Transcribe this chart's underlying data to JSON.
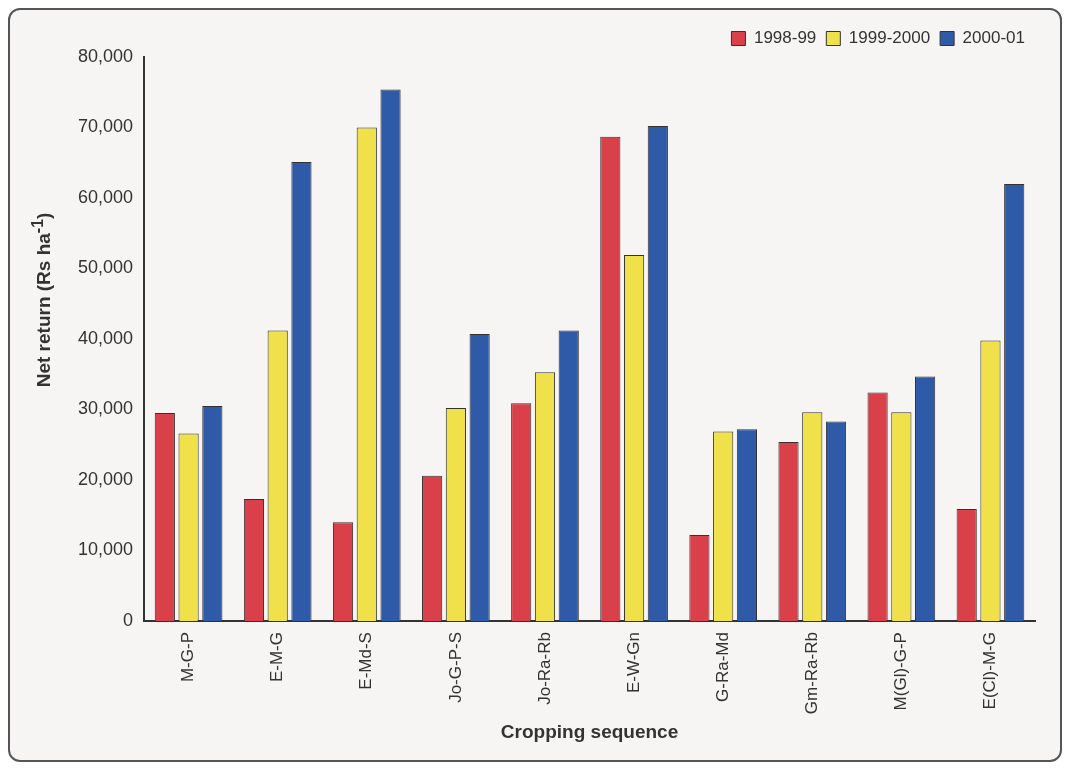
{
  "chart_data": {
    "type": "bar",
    "xlabel": "Cropping sequence",
    "ylabel": "Net return (Rs ha$^{-1}$)",
    "categories": [
      "M-G-P",
      "E-M-G",
      "E-Md-S",
      "Jo-G-P-S",
      "Jo-Ra-Rb",
      "E-W-Gn",
      "G-Ra-Md",
      "Gm-Ra-Rb",
      "M(Gl)-G-P",
      "E(Cl)-M-G"
    ],
    "series": [
      {
        "name": "1998-99",
        "color": "#d9404a",
        "values": [
          29500,
          17300,
          14000,
          20600,
          30900,
          68700,
          12200,
          25400,
          32400,
          15900
        ]
      },
      {
        "name": "1999-2000",
        "color": "#f0e04a",
        "values": [
          26600,
          41200,
          70000,
          30200,
          35300,
          51900,
          26900,
          29600,
          29600,
          39800
        ]
      },
      {
        "name": "2000-01",
        "color": "#2f5aa8",
        "values": [
          30500,
          65100,
          75400,
          40700,
          41200,
          70200,
          27200,
          28300,
          34700,
          62000
        ]
      }
    ],
    "ylim": [
      0,
      80000
    ],
    "yticks": [
      0,
      {
        "value": 10000,
        "label": "10,000"
      },
      {
        "value": 20000,
        "label": "20,000"
      },
      {
        "value": 30000,
        "label": "30,000"
      },
      {
        "value": 40000,
        "label": "40,000"
      },
      {
        "value": 50000,
        "label": "50,000"
      },
      {
        "value": 60000,
        "label": "60,000"
      },
      {
        "value": 70000,
        "label": "70,000"
      },
      {
        "value": 80000,
        "label": "80,000"
      }
    ],
    "grid": false,
    "legend": "top right"
  }
}
